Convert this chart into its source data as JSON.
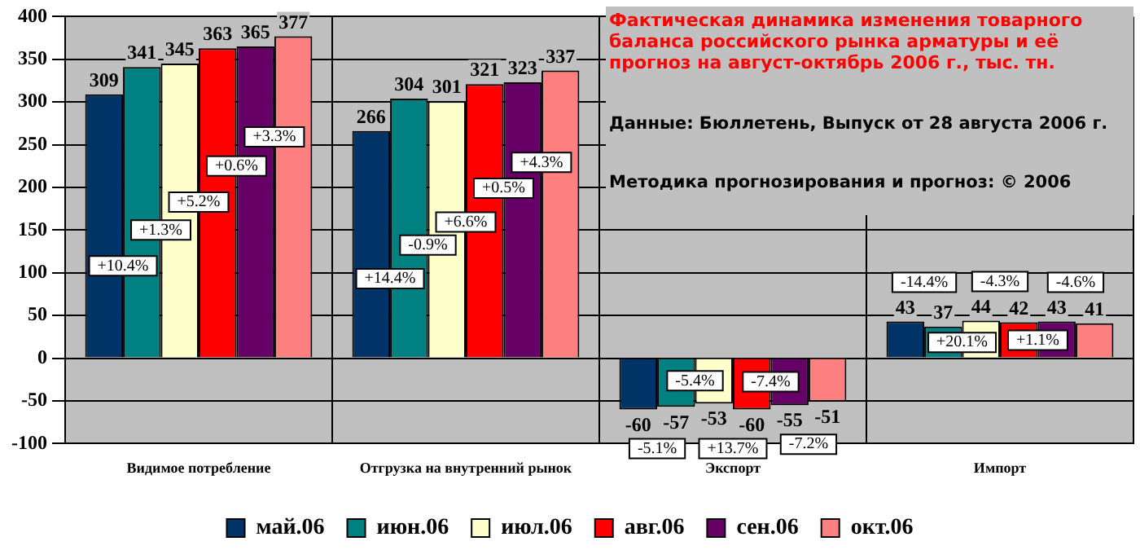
{
  "chart_data": {
    "type": "bar",
    "title": "Фактическая динамика изменения товарного баланса российского рынка арматуры и её прогноз на август-октябрь 2006 г., тыс. тн.",
    "categories": [
      "Видимое потребление",
      "Отгрузка на внутренний рынок",
      "Экспорт",
      "Импорт"
    ],
    "series": [
      {
        "name": "май.06",
        "color": "#003366",
        "values": [
          309,
          266,
          -60,
          43
        ]
      },
      {
        "name": "июн.06",
        "color": "#008080",
        "values": [
          341,
          304,
          -57,
          37
        ]
      },
      {
        "name": "июл.06",
        "color": "#ffffcc",
        "values": [
          345,
          301,
          -53,
          44
        ]
      },
      {
        "name": "авг.06",
        "color": "#ff0000",
        "values": [
          363,
          321,
          -60,
          42
        ]
      },
      {
        "name": "сен.06",
        "color": "#660066",
        "values": [
          365,
          323,
          -55,
          43
        ]
      },
      {
        "name": "окт.06",
        "color": "#ff8080",
        "values": [
          377,
          337,
          -51,
          41
        ]
      }
    ],
    "ylim": [
      -100,
      400
    ],
    "yticks": [
      -100,
      -50,
      0,
      50,
      100,
      150,
      200,
      250,
      300,
      350,
      400
    ],
    "grid": true,
    "legend": "bottom",
    "data_labels": true,
    "annotations": [
      "Данные: Бюллетень, Выпуск от 28 августа 2006 г.",
      "Методика прогнозирования и прогноз: © 2006",
      "+10.4%",
      "+1.3%",
      "+5.2%",
      "+0.6%",
      "+3.3%",
      "+14.4%",
      "-0.9%",
      "+6.6%",
      "+0.5%",
      "+4.3%",
      "-5.1%",
      "-5.4%",
      "+13.7%",
      "-7.4%",
      "-7.2%",
      "-14.4%",
      "+20.1%",
      "-4.3%",
      "+1.1%",
      "-4.6%"
    ]
  }
}
